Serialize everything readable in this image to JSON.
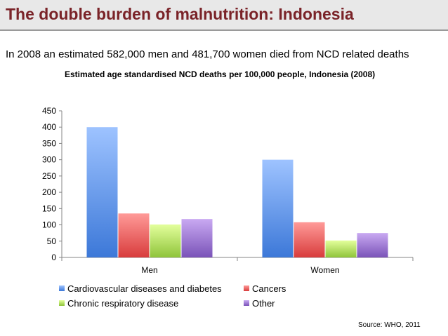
{
  "slide": {
    "title": "The double burden of malnutrition: Indonesia",
    "subtitle": "In 2008 an estimated 582,000 men and 481,700 women died from NCD related deaths",
    "source": "Source: WHO, 2011"
  },
  "colors": {
    "title": "#7a2328",
    "title_bar": "#e8e8e8"
  },
  "chart_data": {
    "type": "bar",
    "title": "Estimated age standardised NCD deaths per 100,000 people, Indonesia (2008)",
    "categories": [
      "Men",
      "Women"
    ],
    "series": [
      {
        "name": "Cardiovascular diseases and diabetes",
        "values": [
          400,
          300
        ],
        "color_light": "#9ec3ff",
        "color_dark": "#3c78d8"
      },
      {
        "name": "Cancers",
        "values": [
          135,
          108
        ],
        "color_light": "#ff9a98",
        "color_dark": "#d83c3c"
      },
      {
        "name": "Chronic respiratory disease",
        "values": [
          101,
          52
        ],
        "color_light": "#e3ff9c",
        "color_dark": "#8fc43a"
      },
      {
        "name": "Other",
        "values": [
          118,
          75
        ],
        "color_light": "#c9a9f2",
        "color_dark": "#7a53b8"
      }
    ],
    "ylim": [
      0,
      450
    ],
    "yticks": [
      0,
      50,
      100,
      150,
      200,
      250,
      300,
      350,
      400,
      450
    ],
    "xlabel": "",
    "ylabel": "",
    "grid": false,
    "legend": "bottom"
  }
}
